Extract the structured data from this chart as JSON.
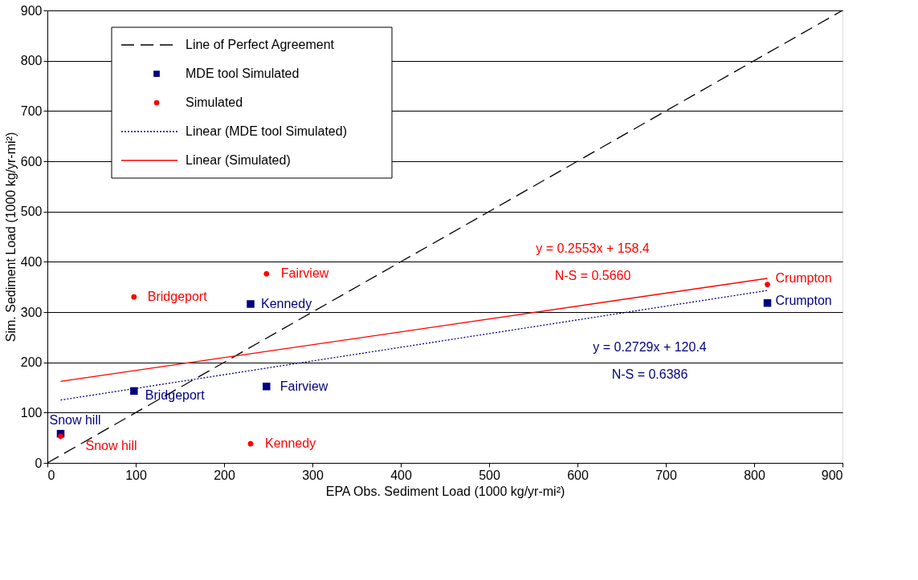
{
  "chart_data": {
    "type": "scatter",
    "xlabel": "EPA Obs. Sediment Load (1000 kg/yr-mi²)",
    "ylabel": "Sim. Sediment Load (1000 kg/yr-mi²)",
    "xlim": [
      0,
      900
    ],
    "ylim": [
      0,
      900
    ],
    "xticks": [
      0,
      100,
      200,
      300,
      400,
      500,
      600,
      700,
      800,
      900
    ],
    "yticks": [
      0,
      100,
      200,
      300,
      400,
      500,
      600,
      700,
      800,
      900
    ],
    "grid": "y",
    "legend": "top left",
    "series": [
      {
        "name": "Line of Perfect Agreement",
        "type": "line",
        "color": "#000000",
        "line_style": "dashed",
        "marker": "none",
        "x": [
          0,
          900
        ],
        "values": [
          0,
          900
        ]
      },
      {
        "name": "MDE tool Simulated",
        "color": "#000080",
        "marker": "square",
        "x": [
          15,
          98,
          230,
          248,
          815
        ],
        "values": [
          58,
          143,
          316,
          152,
          318
        ]
      },
      {
        "name": "Simulated",
        "color": "#ff0000",
        "marker": "circle",
        "x": [
          15,
          98,
          230,
          248,
          815
        ],
        "values": [
          53,
          330,
          38,
          376,
          355
        ]
      },
      {
        "name": "Linear (MDE tool Simulated)",
        "type": "line",
        "color": "#000080",
        "line_style": "dotted",
        "marker": "none",
        "x": [
          15,
          815
        ],
        "values": [
          125,
          343
        ]
      },
      {
        "name": "Linear (Simulated)",
        "type": "line",
        "color": "#ff0000",
        "line_style": "solid",
        "marker": "none",
        "x": [
          15,
          815
        ],
        "values": [
          162,
          367
        ]
      }
    ],
    "annotations": [
      {
        "text": "Snow hill",
        "x": 15,
        "y": 53
      },
      {
        "text": "Snow hill",
        "x": 15,
        "y": 58
      },
      {
        "text": "Bridgeport",
        "x": 98,
        "y": 143
      },
      {
        "text": "Bridgeport",
        "x": 98,
        "y": 330
      },
      {
        "text": "Kennedy",
        "x": 230,
        "y": 316
      },
      {
        "text": "Kennedy",
        "x": 230,
        "y": 38
      },
      {
        "text": "Fairview",
        "x": 248,
        "y": 152
      },
      {
        "text": "Fairview",
        "x": 248,
        "y": 376
      },
      {
        "text": "Crumpton",
        "x": 815,
        "y": 355
      },
      {
        "text": "Crumpton",
        "x": 815,
        "y": 318
      },
      "y = 0.2553x + 158.4\nN-S = 0.5660",
      "y = 0.2729x + 120.4\nN-S = 0.6386"
    ]
  }
}
